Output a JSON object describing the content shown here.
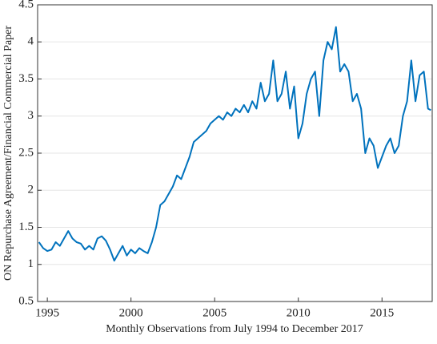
{
  "chart_data": {
    "type": "line",
    "xlabel": "Monthly Observations from July 1994 to December 2017",
    "ylabel": "ON Repurchase Agreement/Financial Commercial Paper",
    "xlim": [
      1994.42,
      2018
    ],
    "ylim": [
      0.5,
      4.5
    ],
    "xticks": [
      1995,
      2000,
      2005,
      2010,
      2015
    ],
    "yticks": [
      0.5,
      1,
      1.5,
      2,
      2.5,
      3,
      3.5,
      4,
      4.5
    ],
    "grid": true,
    "color": "#0072bd",
    "x": [
      1994.5,
      1994.75,
      1995,
      1995.25,
      1995.5,
      1995.75,
      1996,
      1996.25,
      1996.5,
      1996.75,
      1997,
      1997.25,
      1997.5,
      1997.75,
      1998,
      1998.25,
      1998.5,
      1998.75,
      1999,
      1999.25,
      1999.5,
      1999.75,
      2000,
      2000.25,
      2000.5,
      2000.75,
      2001,
      2001.25,
      2001.5,
      2001.75,
      2002,
      2002.25,
      2002.5,
      2002.75,
      2003,
      2003.25,
      2003.5,
      2003.75,
      2004,
      2004.25,
      2004.5,
      2004.75,
      2005,
      2005.25,
      2005.5,
      2005.75,
      2006,
      2006.25,
      2006.5,
      2006.75,
      2007,
      2007.25,
      2007.5,
      2007.75,
      2008,
      2008.25,
      2008.5,
      2008.75,
      2009,
      2009.25,
      2009.5,
      2009.75,
      2010,
      2010.25,
      2010.5,
      2010.75,
      2011,
      2011.25,
      2011.5,
      2011.75,
      2012,
      2012.25,
      2012.5,
      2012.75,
      2013,
      2013.25,
      2013.5,
      2013.75,
      2014,
      2014.25,
      2014.5,
      2014.75,
      2015,
      2015.25,
      2015.5,
      2015.75,
      2016,
      2016.25,
      2016.5,
      2016.75,
      2017,
      2017.25,
      2017.5,
      2017.75,
      2017.92
    ],
    "values": [
      1.3,
      1.22,
      1.18,
      1.2,
      1.3,
      1.25,
      1.35,
      1.45,
      1.35,
      1.3,
      1.28,
      1.2,
      1.25,
      1.2,
      1.35,
      1.38,
      1.32,
      1.2,
      1.05,
      1.15,
      1.25,
      1.12,
      1.2,
      1.15,
      1.22,
      1.18,
      1.15,
      1.3,
      1.5,
      1.8,
      1.85,
      1.95,
      2.05,
      2.2,
      2.15,
      2.3,
      2.45,
      2.65,
      2.7,
      2.75,
      2.8,
      2.9,
      2.95,
      3.0,
      2.95,
      3.05,
      3.0,
      3.1,
      3.05,
      3.15,
      3.05,
      3.2,
      3.1,
      3.45,
      3.2,
      3.3,
      3.75,
      3.2,
      3.3,
      3.6,
      3.1,
      3.4,
      2.7,
      2.9,
      3.3,
      3.5,
      3.6,
      3.0,
      3.75,
      4.0,
      3.9,
      4.2,
      3.6,
      3.7,
      3.6,
      3.2,
      3.3,
      3.1,
      2.5,
      2.7,
      2.6,
      2.3,
      2.45,
      2.6,
      2.7,
      2.5,
      2.6,
      3.0,
      3.2,
      3.75,
      3.2,
      3.55,
      3.6,
      3.1,
      3.08
    ]
  }
}
